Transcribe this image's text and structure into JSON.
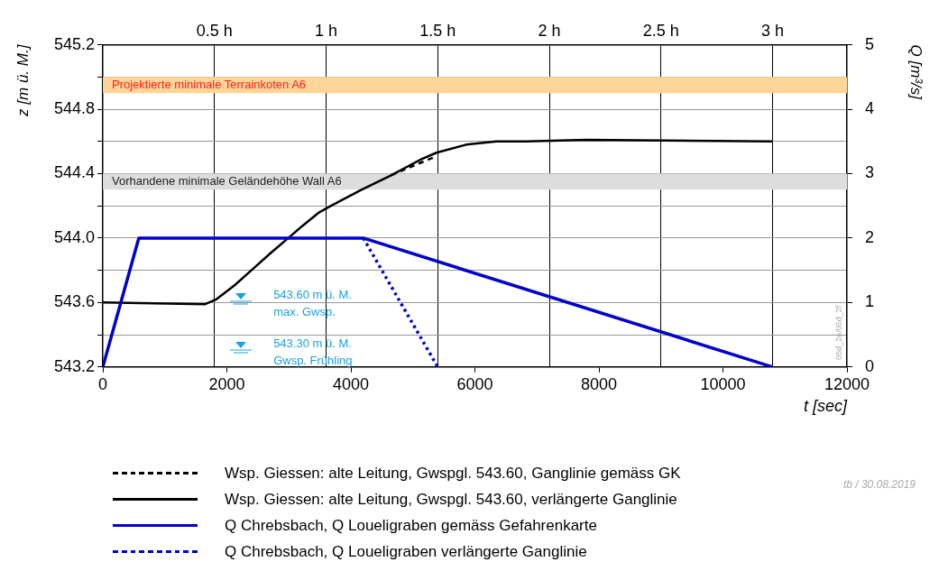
{
  "chart_data": {
    "type": "line",
    "xlabel": "t [sec]",
    "ylabel": "z [m ü. M.]",
    "y2label": "Q [m³/s]",
    "xlim": [
      0,
      12000
    ],
    "xticks": [
      0,
      2000,
      4000,
      6000,
      8000,
      10000,
      12000
    ],
    "x2lim": [
      0,
      3.3333
    ],
    "x2ticks": [
      {
        "value": 0.5,
        "label": "0.5 h"
      },
      {
        "value": 1,
        "label": "1 h"
      },
      {
        "value": 1.5,
        "label": "1.5 h"
      },
      {
        "value": 2,
        "label": "2 h"
      },
      {
        "value": 2.5,
        "label": "2.5 h"
      },
      {
        "value": 3,
        "label": "3 h"
      }
    ],
    "ylim": [
      543.2,
      545.2
    ],
    "yticks": [
      543.2,
      {
        "value": 543.4,
        "label": null
      },
      543.6,
      {
        "value": 543.8,
        "label": null
      },
      {
        "value": 544.0,
        "label": "544.0"
      },
      {
        "value": 544.2,
        "label": null
      },
      544.4,
      {
        "value": 544.6,
        "label": null
      },
      544.8,
      {
        "value": 545.0,
        "label": null
      },
      545.2
    ],
    "y2lim": [
      0,
      5
    ],
    "y2ticks": [
      0,
      1,
      2,
      3,
      4,
      5
    ],
    "grid": true,
    "legend": "bottom",
    "marker": "none",
    "series": [
      {
        "name": "Wsp. Giessen: alte Leitung, Gwspgl. 543.60, Ganglinie gemäss GK",
        "color": "#000000",
        "line_style": "dashed",
        "x": [
          4650,
          5140,
          5330
        ],
        "values": [
          544.39,
          544.47,
          544.5
        ]
      },
      {
        "name": "Wsp. Giessen: alte Leitung, Gwspgl. 543.60, verlängerte Ganglinie",
        "color": "#000000",
        "line_style": "solid",
        "x": [
          0,
          1650,
          1830,
          2133,
          2424,
          2715,
          3050,
          3200,
          3490,
          3680,
          4170,
          4650,
          5140,
          5380,
          5860,
          6350,
          6830,
          7800,
          10800
        ],
        "values": [
          543.6,
          543.59,
          543.62,
          543.71,
          543.81,
          543.91,
          544.02,
          544.07,
          544.16,
          544.2,
          544.3,
          544.39,
          544.49,
          544.53,
          544.58,
          544.6,
          544.6,
          544.61,
          544.6
        ]
      },
      {
        "name": "Q Chrebsbach, Q Loueligraben gemäss Gefahrenkarte",
        "color": "#0000cc",
        "line_style": "solid",
        "axis": "y2",
        "x": [
          0,
          580,
          4200,
          10800
        ],
        "values": [
          0,
          2,
          2,
          0
        ]
      },
      {
        "name": "Q Chrebsbach, Q Loueligraben verlängerte Ganglinie",
        "color": "#0000cc",
        "line_style": "dotted",
        "axis": "y2",
        "x": [
          4200,
          5400
        ],
        "values": [
          2,
          0
        ]
      }
    ],
    "bands": [
      {
        "axis": "y",
        "from": 544.9,
        "to": 545.0,
        "label": "Projektierte minimale Terrainkoten A6",
        "color": "#fdd598"
      },
      {
        "axis": "y",
        "from": 544.3,
        "to": 544.4,
        "label": "Vorhandene minimale Geländehöhe Wall A6",
        "color": "#dcdddc"
      }
    ],
    "annotations": [
      "543.60 m ü. M.\nmax. Gwsp.",
      "543.30 m ü. M.\nGwsp. Frühling",
      "05d_2e/05d_2f",
      "tb / 30.08.2019"
    ]
  }
}
